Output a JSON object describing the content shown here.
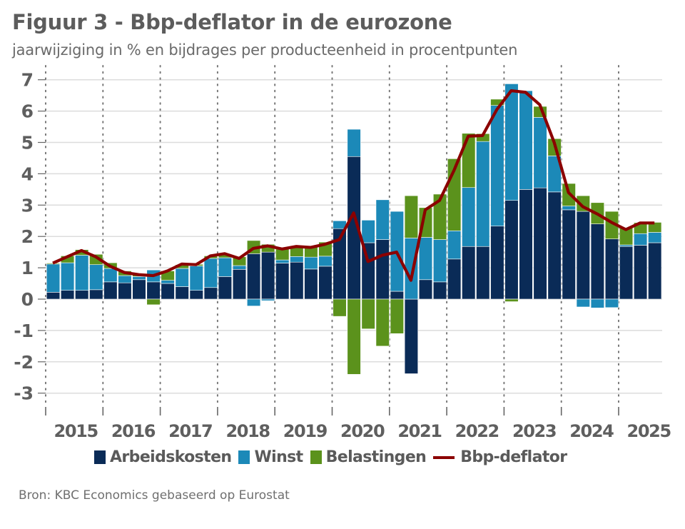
{
  "title": "Figuur 3 - Bbp-deflator in de eurozone",
  "subtitle": "jaarwijziging in % en bijdrages per producteenheid in procentpunten",
  "source": "Bron: KBC Economics gebaseerd op Eurostat",
  "colors": {
    "arbeidskosten": "#0a2b57",
    "winst": "#1c89b8",
    "belastingen": "#5b921c",
    "deflator": "#8b0000",
    "grid": "#dcdcdc",
    "text": "#5f5f5f"
  },
  "chart_data": {
    "type": "bar",
    "stacked": true,
    "title": "Figuur 3 - Bbp-deflator in de eurozone",
    "subtitle": "jaarwijziging in % en bijdrages per producteenheid in procentpunten",
    "xlabel": "",
    "ylabel": "",
    "ylim": [
      -3,
      7
    ],
    "yticks": [
      "7",
      "6",
      "5",
      "4",
      "3",
      "2",
      "1",
      "0",
      "-1",
      "-2",
      "-3"
    ],
    "ytick_values": [
      7,
      6,
      5,
      4,
      3,
      2,
      1,
      0,
      -1,
      -2,
      -3
    ],
    "grid": true,
    "legend_position": "bottom",
    "year_labels": [
      "2015",
      "2016",
      "2017",
      "2018",
      "2019",
      "2020",
      "2021",
      "2022",
      "2023",
      "2024",
      "2025"
    ],
    "categories": [
      "2015Q1",
      "2015Q2",
      "2015Q3",
      "2015Q4",
      "2016Q1",
      "2016Q2",
      "2016Q3",
      "2016Q4",
      "2017Q1",
      "2017Q2",
      "2017Q3",
      "2017Q4",
      "2018Q1",
      "2018Q2",
      "2018Q3",
      "2018Q4",
      "2019Q1",
      "2019Q2",
      "2019Q3",
      "2019Q4",
      "2020Q1",
      "2020Q2",
      "2020Q3",
      "2020Q4",
      "2021Q1",
      "2021Q2",
      "2021Q3",
      "2021Q4",
      "2022Q1",
      "2022Q2",
      "2022Q3",
      "2022Q4",
      "2023Q1",
      "2023Q2",
      "2023Q3",
      "2023Q4",
      "2024Q1",
      "2024Q2",
      "2024Q3",
      "2024Q4",
      "2025Q1",
      "2025Q2",
      "2025Q3"
    ],
    "series": [
      {
        "name": "Arbeidskosten",
        "kind": "bar",
        "values": [
          0.22,
          0.28,
          0.28,
          0.3,
          0.55,
          0.52,
          0.62,
          0.55,
          0.5,
          0.4,
          0.28,
          0.37,
          0.72,
          0.95,
          1.45,
          1.5,
          1.15,
          1.18,
          0.96,
          1.05,
          2.25,
          4.55,
          1.8,
          1.9,
          0.25,
          -2.38,
          0.62,
          0.55,
          1.28,
          1.68,
          1.68,
          2.33,
          3.15,
          3.5,
          3.55,
          3.42,
          2.85,
          2.8,
          2.4,
          1.92,
          1.68,
          1.72,
          1.8
        ]
      },
      {
        "name": "Winst",
        "kind": "bar",
        "values": [
          0.9,
          0.88,
          1.12,
          0.8,
          0.43,
          0.23,
          0.1,
          0.38,
          0.1,
          0.58,
          0.78,
          0.93,
          0.6,
          0.12,
          -0.22,
          -0.05,
          0.1,
          0.18,
          0.38,
          0.32,
          0.25,
          0.87,
          0.72,
          1.27,
          2.55,
          1.95,
          1.35,
          1.35,
          0.9,
          1.88,
          3.35,
          3.85,
          3.72,
          3.15,
          2.25,
          1.15,
          0.12,
          -0.25,
          -0.28,
          -0.27,
          0.05,
          0.37,
          0.33
        ]
      },
      {
        "name": "Belastingen",
        "kind": "bar",
        "values": [
          0.03,
          0.22,
          0.18,
          0.33,
          0.18,
          0.15,
          0.05,
          -0.18,
          0.3,
          0.12,
          0.05,
          0.08,
          0.1,
          0.28,
          0.42,
          0.25,
          0.35,
          0.28,
          0.36,
          0.45,
          -0.55,
          -2.4,
          -0.95,
          -1.5,
          -1.1,
          1.35,
          0.95,
          1.45,
          2.3,
          1.73,
          0.25,
          0.2,
          -0.08,
          0.0,
          0.35,
          0.55,
          0.72,
          0.5,
          0.68,
          0.88,
          0.55,
          0.35,
          0.32
        ]
      },
      {
        "name": "Bbp-deflator",
        "kind": "line",
        "values": [
          1.15,
          1.35,
          1.55,
          1.35,
          1.05,
          0.85,
          0.78,
          0.75,
          0.9,
          1.12,
          1.1,
          1.38,
          1.45,
          1.3,
          1.62,
          1.7,
          1.6,
          1.68,
          1.65,
          1.75,
          1.9,
          2.75,
          1.2,
          1.4,
          1.5,
          0.6,
          2.85,
          3.15,
          4.1,
          5.2,
          5.22,
          6.05,
          6.65,
          6.6,
          6.2,
          5.0,
          3.4,
          2.95,
          2.72,
          2.45,
          2.22,
          2.43,
          2.43
        ]
      }
    ]
  },
  "legend": [
    {
      "label": "Arbeidskosten",
      "type": "box",
      "color_key": "arbeidskosten"
    },
    {
      "label": "Winst",
      "type": "box",
      "color_key": "winst"
    },
    {
      "label": "Belastingen",
      "type": "box",
      "color_key": "belastingen"
    },
    {
      "label": "Bbp-deflator",
      "type": "line",
      "color_key": "deflator"
    }
  ]
}
